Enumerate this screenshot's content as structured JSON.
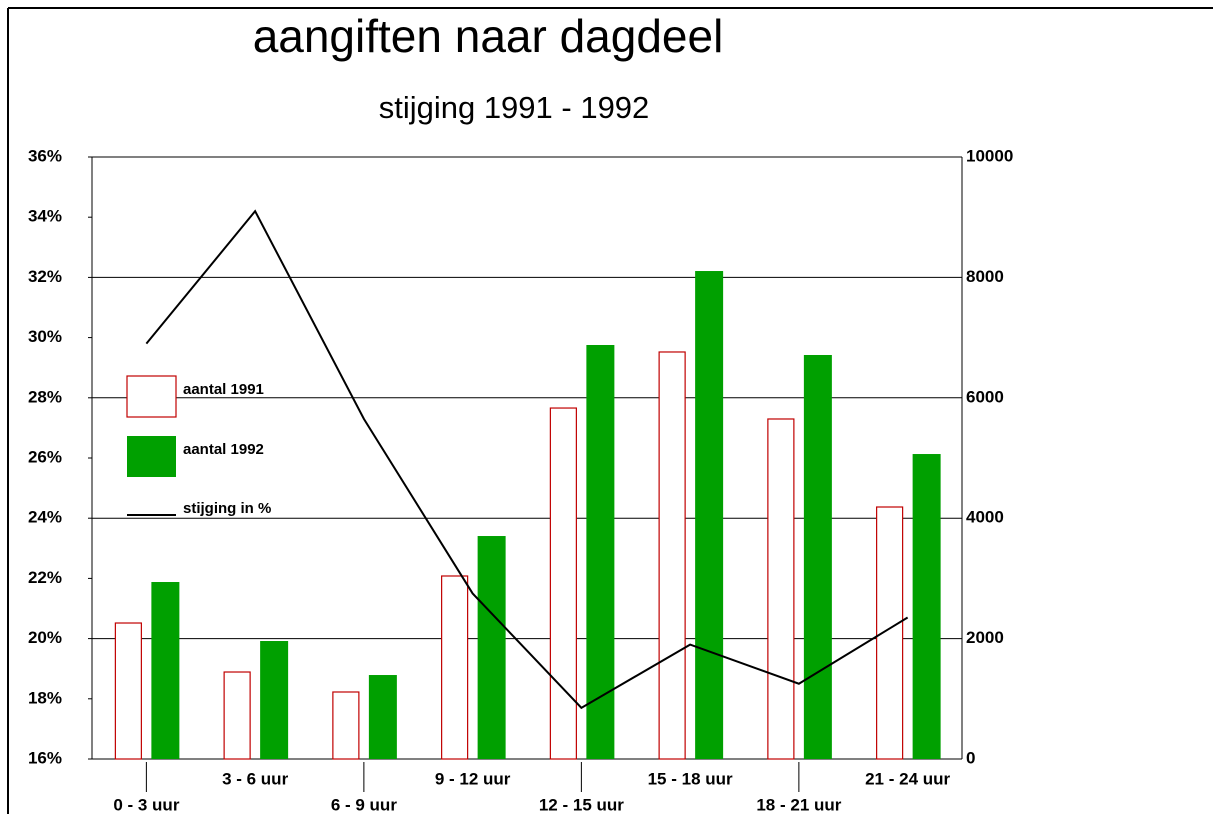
{
  "chart_data": {
    "type": "bar_line",
    "title": "aangiften naar dagdeel",
    "subtitle": "stijging 1991 - 1992",
    "categories": [
      "0 - 3 uur",
      "3 - 6 uur",
      "6 - 9 uur",
      "9 - 12 uur",
      "12 - 15 uur",
      "15 - 18 uur",
      "18 - 21 uur",
      "21 - 24 uur"
    ],
    "series": [
      {
        "name": "aantal 1991",
        "color": "#c00000",
        "kind": "bar-outline",
        "axis": "y2",
        "values": [
          2259,
          1445,
          1113,
          3040,
          5830,
          6761,
          5648,
          4186
        ]
      },
      {
        "name": "aantal 1992",
        "color": "#00a000",
        "kind": "bar",
        "axis": "y2",
        "values": [
          2940,
          1960,
          1395,
          3704,
          6877,
          8106,
          6711,
          5066
        ]
      },
      {
        "name": "stijging in %",
        "color": "#000000",
        "kind": "line",
        "axis": "y",
        "values": [
          29.8,
          34.2,
          27.3,
          21.5,
          17.7,
          19.8,
          18.5,
          20.7
        ]
      }
    ],
    "ylim": [
      16,
      36
    ],
    "yticks": [
      {
        "value": 16,
        "label": "16%"
      },
      {
        "value": 18,
        "label": "18%"
      },
      {
        "value": 20,
        "label": "20%"
      },
      {
        "value": 22,
        "label": "22%"
      },
      {
        "value": 24,
        "label": "24%"
      },
      {
        "value": 26,
        "label": "26%"
      },
      {
        "value": 28,
        "label": "28%"
      },
      {
        "value": 30,
        "label": "30%"
      },
      {
        "value": 32,
        "label": "32%"
      },
      {
        "value": 34,
        "label": "34%"
      },
      {
        "value": 36,
        "label": "36%"
      }
    ],
    "y2lim": [
      0,
      10000
    ],
    "y2ticks": [
      0,
      2000,
      4000,
      6000,
      8000,
      10000
    ],
    "grid": true
  }
}
